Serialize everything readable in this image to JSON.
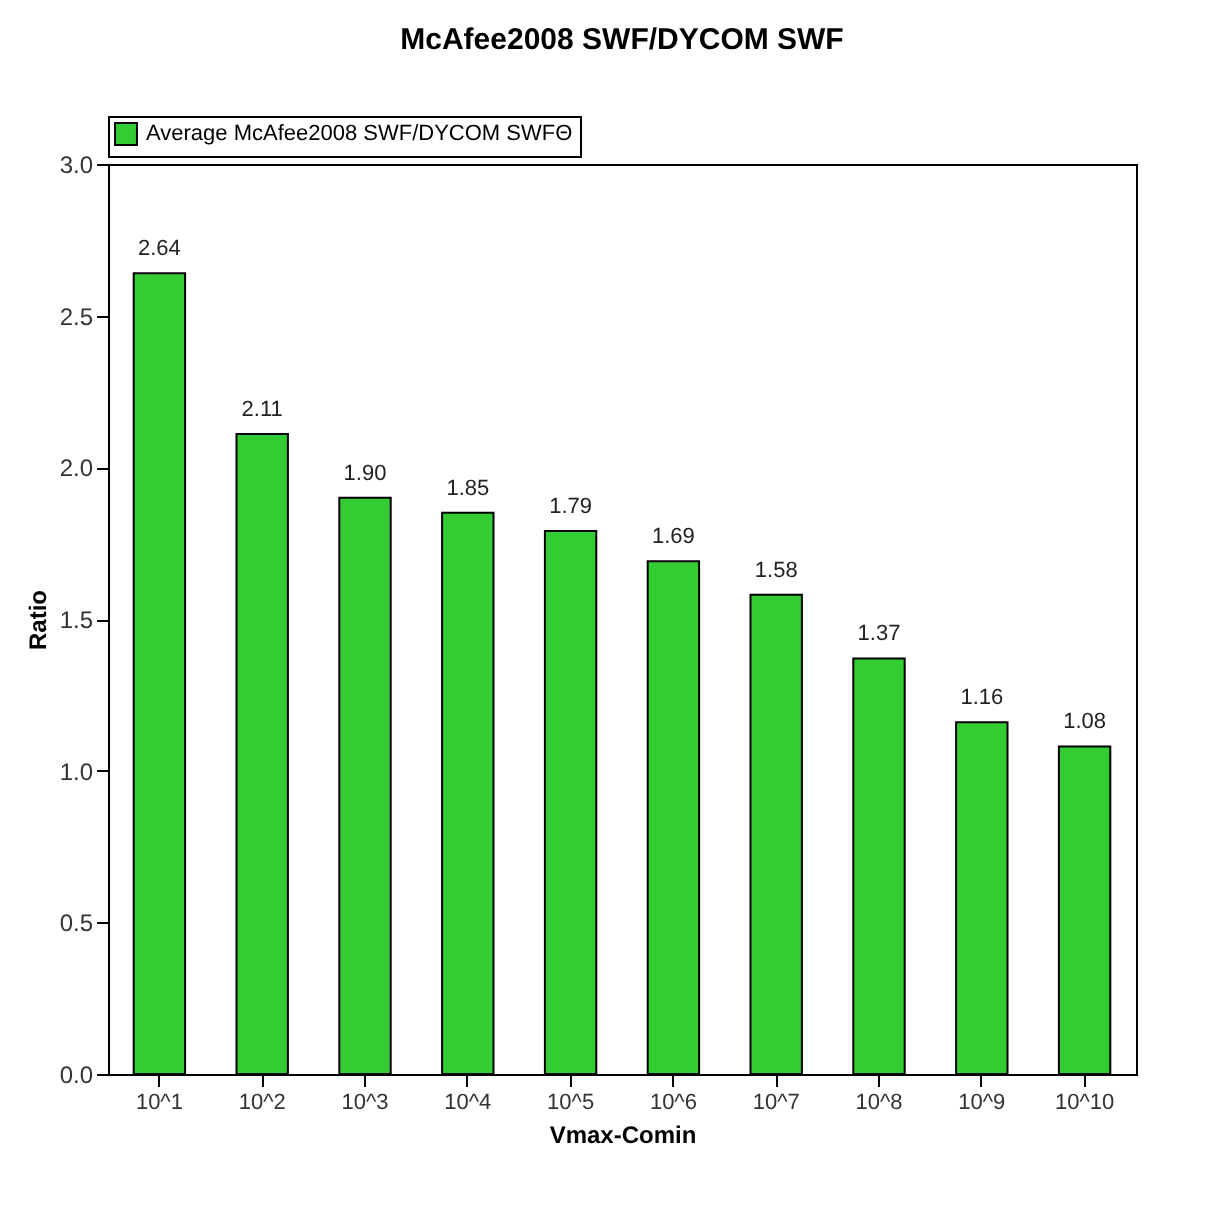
{
  "chart_data": {
    "type": "bar",
    "title": "McAfee2008 SWF/DYCOM SWF",
    "xlabel": "Vmax-Comin",
    "ylabel": "Ratio",
    "categories": [
      "10^1",
      "10^2",
      "10^3",
      "10^4",
      "10^5",
      "10^6",
      "10^7",
      "10^8",
      "10^9",
      "10^10"
    ],
    "series": [
      {
        "name": "Average McAfee2008 SWF/DYCOM SWFΘ",
        "color": "#33cc33",
        "values": [
          2.64,
          2.11,
          1.9,
          1.85,
          1.79,
          1.69,
          1.58,
          1.37,
          1.16,
          1.08
        ],
        "value_labels": [
          "2.64",
          "2.11",
          "1.90",
          "1.85",
          "1.79",
          "1.69",
          "1.58",
          "1.37",
          "1.16",
          "1.08"
        ]
      }
    ],
    "ylim": [
      0,
      3.0
    ],
    "yticks": [
      {
        "value": 0,
        "label": "0.0"
      },
      0.5,
      {
        "value": 1,
        "label": "1.0"
      },
      1.5,
      {
        "value": 2,
        "label": "2.0"
      },
      2.5,
      {
        "value": 3,
        "label": "3.0"
      }
    ],
    "grid": false,
    "legend": "top left"
  }
}
